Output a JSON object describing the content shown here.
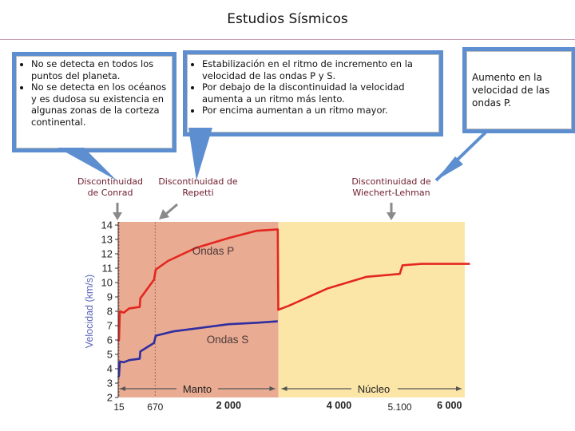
{
  "title": "Estudios Sísmicos",
  "callouts": {
    "left": [
      "No se detecta en todos los puntos del planeta.",
      "No se detecta en los océanos y es dudosa su existencia en algunas zonas de la corteza continental."
    ],
    "middle": [
      "Estabilización en el ritmo de incremento en la velocidad de las ondas P y S.",
      "Por debajo de la discontinuidad la velocidad aumenta a un ritmo más lento.",
      "Por encima aumentan a un ritmo mayor."
    ],
    "right": "Aumento en la velocidad de las ondas P."
  },
  "discontinuities": {
    "conrad": "Discontinuidad de Conrad",
    "repetti": "Discontinuidad de Repetti",
    "wiechert": "Discontinuidad de Wiechert-Lehman"
  },
  "colors": {
    "accent": "#5d8ecf",
    "mantle": "#eaab93",
    "core": "#fbe6a8",
    "p_wave": "#e3271f",
    "s_wave": "#2f2ea0",
    "label": "#6d1b2c"
  },
  "chart_data": {
    "type": "line",
    "ylabel": "Velocidad (km/s)",
    "ylim": [
      2,
      14
    ],
    "yticks": [
      "2",
      "3",
      "4",
      "5",
      "6",
      "7",
      "8",
      "9",
      "10",
      "11",
      "12",
      "13",
      "14"
    ],
    "xticks": [
      {
        "x": 15,
        "label": "15"
      },
      {
        "x": 670,
        "label": "670"
      },
      {
        "x": 2000,
        "label": "2 000"
      },
      {
        "x": 4000,
        "label": "4 000"
      },
      {
        "x": 5100,
        "label": "5.100"
      },
      {
        "x": 6000,
        "label": "6 000"
      }
    ],
    "regions": [
      {
        "name": "Manto",
        "from": 30,
        "to": 2900
      },
      {
        "name": "Núcleo",
        "from": 2900,
        "to": 6370
      }
    ],
    "series": [
      {
        "name": "Ondas P",
        "points": [
          [
            0,
            5.9
          ],
          [
            15,
            6.0
          ],
          [
            30,
            8.0
          ],
          [
            100,
            7.9
          ],
          [
            200,
            8.2
          ],
          [
            390,
            8.3
          ],
          [
            400,
            8.9
          ],
          [
            650,
            10.2
          ],
          [
            680,
            10.9
          ],
          [
            900,
            11.5
          ],
          [
            1400,
            12.4
          ],
          [
            2000,
            13.1
          ],
          [
            2500,
            13.6
          ],
          [
            2890,
            13.7
          ],
          [
            2900,
            8.1
          ],
          [
            3100,
            8.4
          ],
          [
            3800,
            9.6
          ],
          [
            4500,
            10.4
          ],
          [
            5100,
            10.6
          ],
          [
            5150,
            11.2
          ],
          [
            5500,
            11.3
          ],
          [
            6370,
            11.3
          ]
        ]
      },
      {
        "name": "Ondas S",
        "points": [
          [
            0,
            3.4
          ],
          [
            15,
            3.5
          ],
          [
            30,
            4.5
          ],
          [
            100,
            4.45
          ],
          [
            200,
            4.6
          ],
          [
            390,
            4.7
          ],
          [
            400,
            5.2
          ],
          [
            650,
            5.8
          ],
          [
            680,
            6.3
          ],
          [
            1000,
            6.6
          ],
          [
            1600,
            6.9
          ],
          [
            2000,
            7.1
          ],
          [
            2500,
            7.2
          ],
          [
            2890,
            7.3
          ]
        ]
      }
    ]
  }
}
